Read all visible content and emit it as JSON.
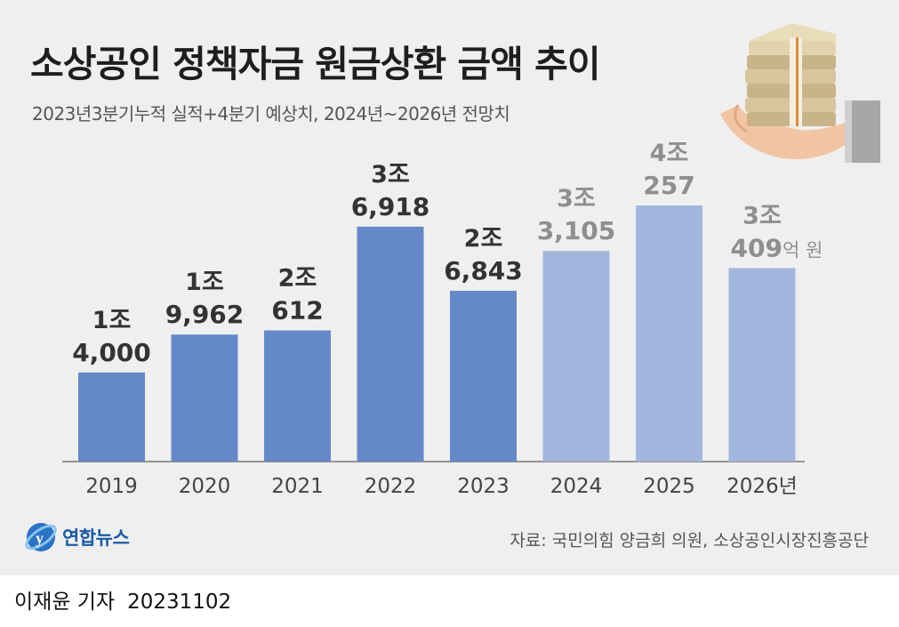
{
  "title": "소상공인 정책자금 원금상환 금액 추이",
  "subtitle": "2023년3분기누적 실적+4분기 예상치, 2024년~2026년 전망치",
  "source": "자료: 국민의힘 양금희 의원, 소상공인시장진흥공단",
  "logo": {
    "name": "연합뉴스"
  },
  "byline": {
    "reporter": "이재윤 기자",
    "date": "20231102"
  },
  "colors": {
    "actual": "#6589c8",
    "forecast": "#a3b6dd",
    "label_actual": "#333333",
    "label_forecast": "#8f8f8f",
    "background": "#efefef"
  },
  "chart_data": {
    "type": "bar",
    "title": "소상공인 정책자금 원금상환 금액 추이",
    "unit": "억 원",
    "categories": [
      "2019",
      "2020",
      "2021",
      "2022",
      "2023",
      "2024",
      "2025",
      "2026"
    ],
    "x_unit_suffix": "년",
    "values": [
      14000,
      19962,
      20612,
      36918,
      26843,
      33105,
      40257,
      30409
    ],
    "value_labels": [
      [
        "1조",
        "4,000"
      ],
      [
        "1조",
        "9,962"
      ],
      [
        "2조",
        "612"
      ],
      [
        "3조",
        "6,918"
      ],
      [
        "2조",
        "6,843"
      ],
      [
        "3조",
        "3,105"
      ],
      [
        "4조",
        "257"
      ],
      [
        "3조",
        "409"
      ]
    ],
    "value_unit_label": "억 원",
    "status": [
      "actual",
      "actual",
      "actual",
      "actual",
      "actual",
      "forecast",
      "forecast",
      "forecast"
    ],
    "xlabel": "",
    "ylabel": "",
    "grid": false,
    "legend": "none"
  }
}
